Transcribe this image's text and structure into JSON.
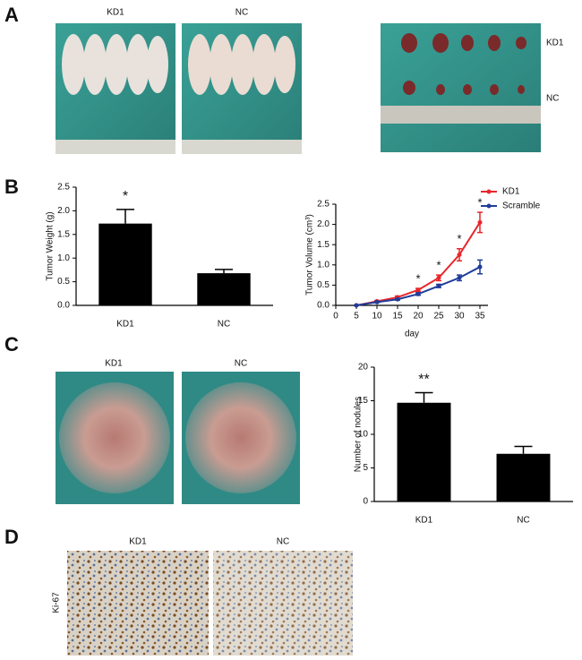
{
  "panel_labels": [
    "A",
    "B",
    "C",
    "D"
  ],
  "photos": {
    "a_left": "KD1",
    "a_mid": "NC",
    "a_right_top": "KD1",
    "a_right_bottom": "NC",
    "c_left": "KD1",
    "c_right": "NC",
    "d_left": "KD1",
    "d_right": "NC",
    "d_stain": "Ki-67"
  },
  "chart_data": [
    {
      "type": "bar",
      "y_label": "Tumor Weight (g)",
      "categories": [
        "KD1",
        "NC"
      ],
      "values": [
        1.73,
        0.68
      ],
      "errors": [
        0.3,
        0.08
      ],
      "color": "#000000",
      "ylim": [
        0,
        2.5
      ],
      "yticks": [
        {
          "value": 0,
          "label": "0.0"
        },
        0.5,
        {
          "value": 1,
          "label": "1.0"
        },
        1.5,
        {
          "value": 2,
          "label": "2.0"
        },
        2.5
      ],
      "annotations": [
        {
          "category": "KD1",
          "text": "*"
        }
      ]
    },
    {
      "type": "line",
      "x_label": "day",
      "y_label": "Tumor Volume (cm³)",
      "x": [
        5,
        10,
        15,
        20,
        25,
        30,
        35
      ],
      "series": [
        {
          "name": "KD1",
          "color": "#e8262b",
          "values": [
            0,
            0.1,
            0.2,
            0.38,
            0.68,
            1.25,
            2.05
          ],
          "errors": [
            0,
            0.02,
            0.03,
            0.04,
            0.07,
            0.15,
            0.25
          ]
        },
        {
          "name": "Scramble",
          "color": "#1f3d99",
          "values": [
            0,
            0.08,
            0.15,
            0.28,
            0.48,
            0.68,
            0.95
          ],
          "errors": [
            0,
            0.01,
            0.02,
            0.03,
            0.04,
            0.07,
            0.17
          ]
        }
      ],
      "xlim": [
        0,
        35
      ],
      "xticks": [
        0,
        5,
        10,
        15,
        20,
        25,
        30,
        35
      ],
      "ylim": [
        0,
        2.5
      ],
      "yticks": [
        {
          "value": 0,
          "label": "0.0"
        },
        0.5,
        {
          "value": 1,
          "label": "1.0"
        },
        1.5,
        {
          "value": 2,
          "label": "2.0"
        },
        2.5
      ],
      "legend": "upper right",
      "annotations": [
        {
          "x": 20,
          "text": "*"
        },
        {
          "x": 25,
          "text": "*"
        },
        {
          "x": 30,
          "text": "*"
        },
        {
          "x": 35,
          "text": "*"
        }
      ]
    },
    {
      "type": "bar",
      "y_label": "Number of nodules",
      "categories": [
        "KD1",
        "NC"
      ],
      "values": [
        14.7,
        7.1
      ],
      "errors": [
        1.5,
        1.1
      ],
      "color": "#000000",
      "ylim": [
        0,
        20
      ],
      "yticks": [
        0,
        5,
        10,
        15,
        20
      ],
      "annotations": [
        {
          "category": "KD1",
          "text": "**"
        }
      ]
    }
  ]
}
